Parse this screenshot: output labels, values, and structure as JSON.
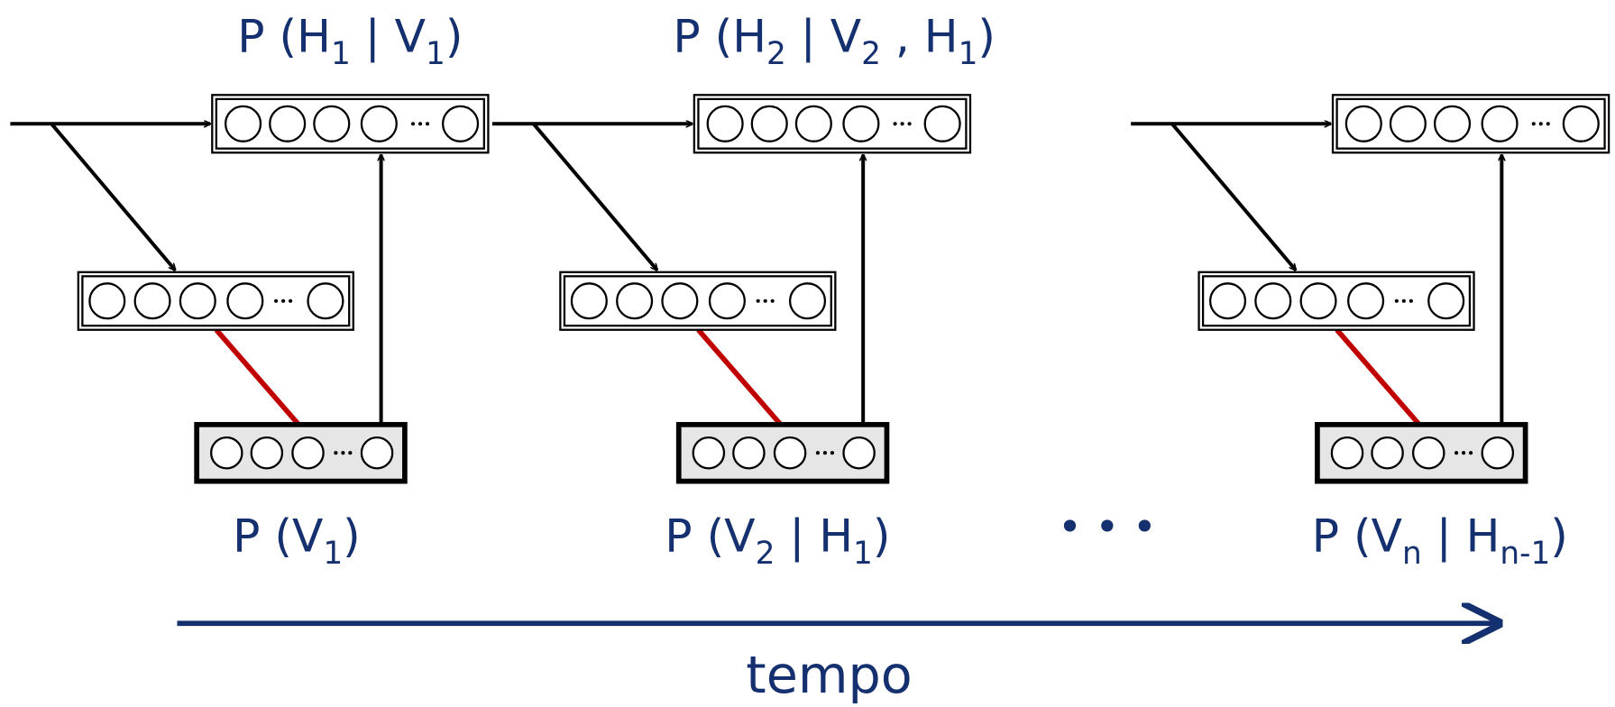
{
  "labels": [
    {
      "parts": [
        "P (H",
        "1",
        " | V",
        "1",
        ")"
      ]
    },
    {
      "parts": [
        "P (H",
        "2",
        " | V",
        "2",
        " , H",
        "1",
        ")"
      ]
    },
    {
      "parts": [
        "P (V",
        "1",
        ")"
      ]
    },
    {
      "parts": [
        "P (V",
        "2",
        " | H",
        "1",
        ")"
      ]
    },
    {
      "parts": [
        "P (V",
        "n",
        " | H",
        "n-1",
        ")"
      ]
    }
  ],
  "ellipsis": "• • •",
  "axis_label": "tempo"
}
